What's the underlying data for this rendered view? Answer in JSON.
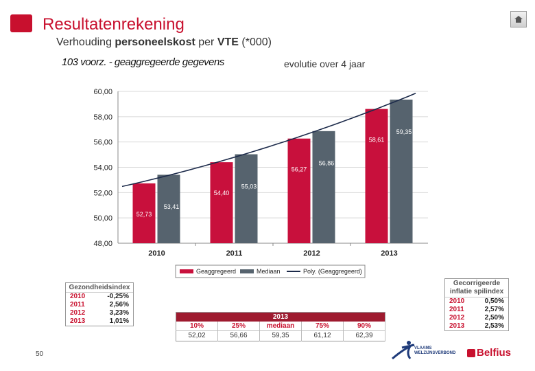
{
  "header": {
    "title": "Resultatenrekening",
    "subtitle_pre": "Verhouding ",
    "subtitle_bold1": "personeelskost",
    "subtitle_mid": " per ",
    "subtitle_bold2": "VTE",
    "subtitle_post": " (*000)",
    "chart_heading": "103 voorz. - geaggregeerde gegevens",
    "evolution_label": "evolutie over 4 jaar"
  },
  "chart_data": {
    "type": "bar",
    "categories": [
      "2010",
      "2011",
      "2012",
      "2013"
    ],
    "series": [
      {
        "name": "Geaggregeerd",
        "values": [
          52.73,
          54.4,
          56.27,
          58.61
        ],
        "labels": [
          "52,73",
          "54,40",
          "56,27",
          "58,61"
        ]
      },
      {
        "name": "Mediaan",
        "values": [
          53.41,
          55.03,
          56.86,
          59.35
        ],
        "labels": [
          "53,41",
          "55,03",
          "56,86",
          "59,35"
        ]
      }
    ],
    "trendline": {
      "name": "Poly. (Geaggregeerd)"
    },
    "ylim": [
      48,
      60
    ],
    "yticks": [
      "48,00",
      "50,00",
      "52,00",
      "54,00",
      "56,00",
      "58,00",
      "60,00"
    ],
    "ytick_values": [
      48,
      50,
      52,
      54,
      56,
      58,
      60
    ],
    "grid": true,
    "legend": "bottom",
    "colors": {
      "Geaggregeerd": "#c8103c",
      "Mediaan": "#56636e",
      "trend": "#1c2a4a"
    }
  },
  "gezondheidsindex": {
    "title": "Gezondheidsindex",
    "rows": [
      {
        "year": "2010",
        "value": "-0,25%"
      },
      {
        "year": "2011",
        "value": "2,56%"
      },
      {
        "year": "2012",
        "value": "3,23%"
      },
      {
        "year": "2013",
        "value": "1,01%"
      }
    ]
  },
  "gecorrigeerde": {
    "title_line1": "Gecorrigeerde",
    "title_line2": "inflatie spilindex",
    "rows": [
      {
        "year": "2010",
        "value": "0,50%"
      },
      {
        "year": "2011",
        "value": "2,57%"
      },
      {
        "year": "2012",
        "value": "2,50%"
      },
      {
        "year": "2013",
        "value": "2,53%"
      }
    ]
  },
  "percentiles": {
    "year": "2013",
    "labels": [
      "10%",
      "25%",
      "mediaan",
      "75%",
      "90%"
    ],
    "values": [
      "52,02",
      "56,66",
      "59,35",
      "61,12",
      "62,39"
    ]
  },
  "footer": {
    "page_number": "50",
    "vlaams_line1": "VLAAMS",
    "vlaams_line2": "WELZIJNSVERBOND",
    "brand": "Belfius"
  }
}
